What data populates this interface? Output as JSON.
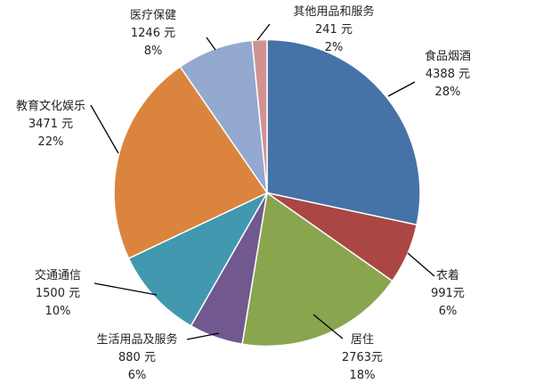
{
  "chart_data": {
    "type": "pie",
    "start": "top",
    "direction": "clockwise",
    "slices": [
      {
        "label": "食品烟酒",
        "value": 4388,
        "value_label": "4388 元",
        "percent_label": "28%",
        "color": "#4572A7"
      },
      {
        "label": "衣着",
        "value": 991,
        "value_label": "991元",
        "percent_label": "6%",
        "color": "#AA4643"
      },
      {
        "label": "居住",
        "value": 2763,
        "value_label": "2763元",
        "percent_label": "18%",
        "color": "#89A54E"
      },
      {
        "label": "生活用品及服务",
        "value": 880,
        "value_label": "880 元",
        "percent_label": "6%",
        "color": "#71588F"
      },
      {
        "label": "交通通信",
        "value": 1500,
        "value_label": "1500 元",
        "percent_label": "10%",
        "color": "#4198AF"
      },
      {
        "label": "教育文化娱乐",
        "value": 3471,
        "value_label": "3471 元",
        "percent_label": "22%",
        "color": "#DB843D"
      },
      {
        "label": "医疗保健",
        "value": 1246,
        "value_label": "1246 元",
        "percent_label": "8%",
        "color": "#93A9CF"
      },
      {
        "label": "其他用品和服务",
        "value": 241,
        "value_label": "241 元",
        "percent_label": "2%",
        "color": "#D19392"
      }
    ]
  }
}
